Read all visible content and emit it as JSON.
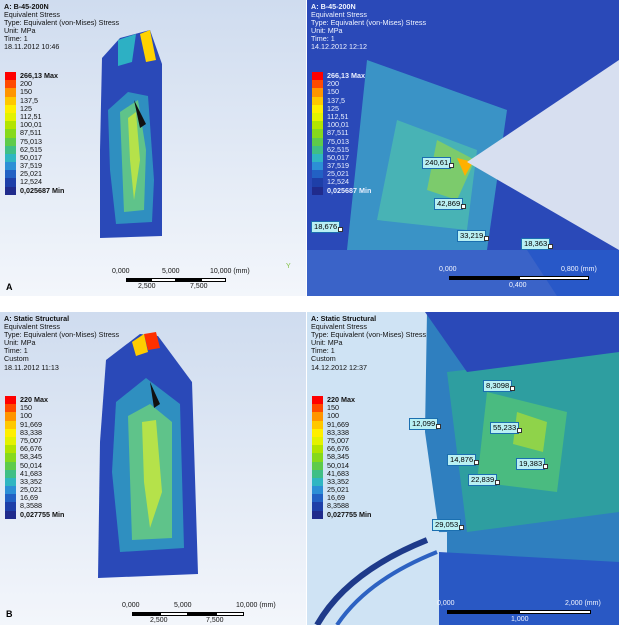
{
  "panels": {
    "a_left": {
      "header": [
        "A: B-45-200N",
        "Equivalent Stress",
        "Type: Equivalent (von-Mises) Stress",
        "Unit: MPa",
        "Time: 1",
        "18.11.2012 10:46"
      ],
      "scale": {
        "top": [
          "0,000",
          "5,000",
          "10,000 (mm)"
        ],
        "bottom": [
          "2,500",
          "7,500"
        ]
      },
      "axis_letter": "Y"
    },
    "a_right": {
      "header": [
        "A: B-45-200N",
        "Equivalent Stress",
        "Type: Equivalent (von-Mises) Stress",
        "Unit: MPa",
        "Time: 1",
        "14.12.2012 12:12"
      ],
      "probes": [
        "240,61",
        "42,869",
        "18,676",
        "33,219",
        "18,363"
      ],
      "scale": {
        "top": [
          "0,000",
          "0,800 (mm)"
        ],
        "bottom": [
          "0,400"
        ]
      }
    },
    "b_left": {
      "header": [
        "A: Static Structural",
        "Equivalent Stress",
        "Type: Equivalent (von-Mises) Stress",
        "Unit: MPa",
        "Time: 1",
        "Custom",
        "18.11.2012 11:13"
      ],
      "scale": {
        "top": [
          "0,000",
          "5,000",
          "10,000 (mm)"
        ],
        "bottom": [
          "2,500",
          "7,500"
        ]
      }
    },
    "b_right": {
      "header": [
        "A: Static Structural",
        "Equivalent Stress",
        "Type: Equivalent (von-Mises) Stress",
        "Unit: MPa",
        "Time: 1",
        "Custom",
        "14.12.2012 12:37"
      ],
      "probes": [
        "8,3098",
        "12,099",
        "55,233",
        "14,876",
        "19,383",
        "22,839",
        "29,053"
      ],
      "scale": {
        "top": [
          "0,000",
          "2,000 (mm)"
        ],
        "bottom": [
          "1,000"
        ]
      }
    }
  },
  "legend_a": {
    "max": "266,13 Max",
    "values": [
      "200",
      "150",
      "137,5",
      "125",
      "112,51",
      "100,01",
      "87,511",
      "75,013",
      "62,515",
      "50,017",
      "37,519",
      "25,021",
      "12,524"
    ],
    "min": "0,025687 Min"
  },
  "legend_b": {
    "max": "220 Max",
    "values": [
      "150",
      "100",
      "91,669",
      "83,338",
      "75,007",
      "66,676",
      "58,345",
      "50,014",
      "41,683",
      "33,352",
      "25,021",
      "16,69",
      "8,3588"
    ],
    "min": "0,027755 Min"
  },
  "legend_colors": [
    "#ff0000",
    "#ff4a00",
    "#ff9500",
    "#ffc800",
    "#ffef00",
    "#e3f200",
    "#b2e400",
    "#86d91c",
    "#5ecb4b",
    "#3fbf86",
    "#2fb6c2",
    "#2c8fd6",
    "#2261c4",
    "#1e3fa8",
    "#202b8c"
  ],
  "panel_letters": {
    "a": "A",
    "b": "B"
  },
  "colors": {
    "model_blue": "#2a49b8",
    "bg_gray": "#d6dcea",
    "light_blue": "#cfe3f4"
  }
}
